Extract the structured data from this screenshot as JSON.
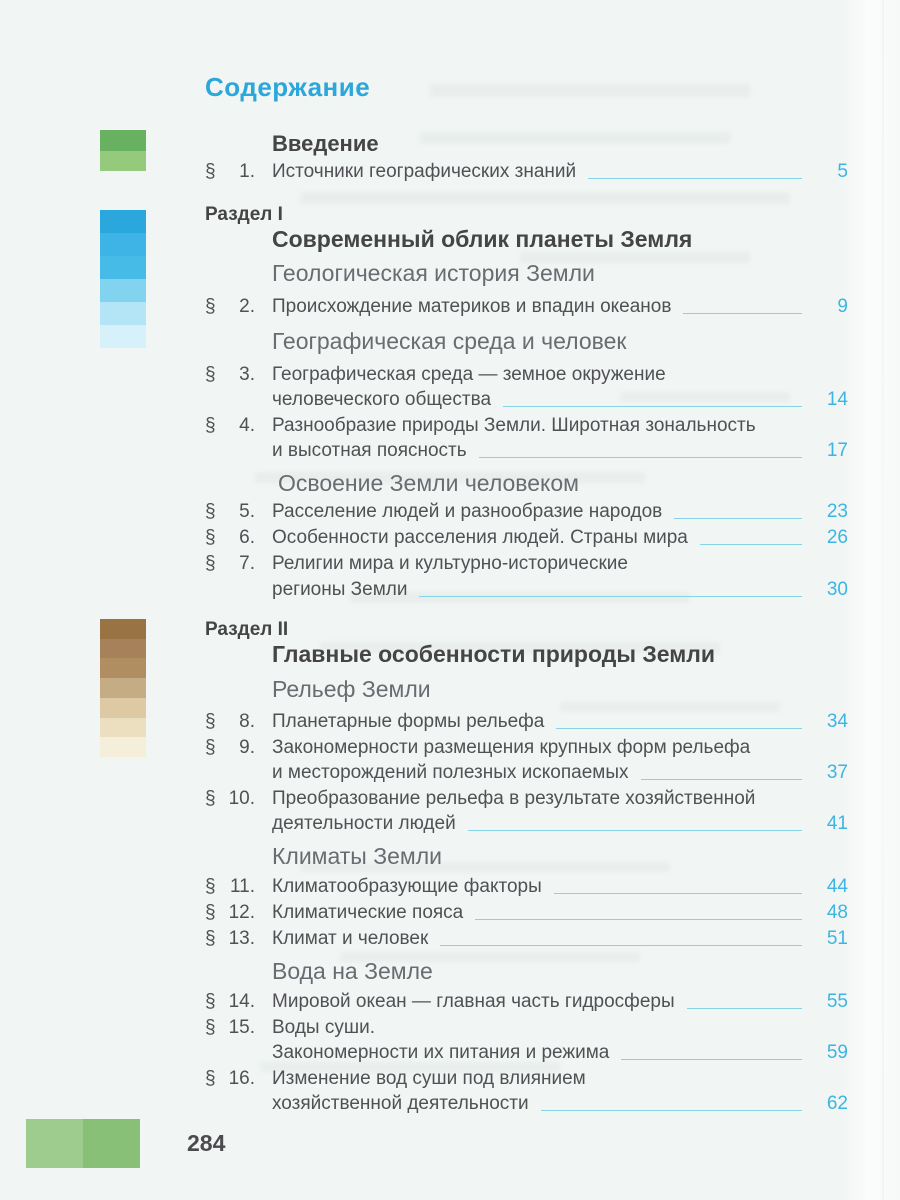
{
  "page": {
    "title": "Содержание",
    "folio": "284"
  },
  "colors": {
    "accent_cyan": "#2ca7db",
    "page_ref_cyan": "#3cb5e2",
    "leader_cyan": "#85d2e9",
    "heading_dark": "#454547",
    "body_text": "#515155",
    "group_gray": "#6b6b72",
    "background": "#f1f5f3"
  },
  "swatches": {
    "intro": [
      "#68b160",
      "#95c97c"
    ],
    "part1": [
      "#2aa7dc",
      "#3db4e5",
      "#46bbe8",
      "#82d3f0",
      "#b4e5f6",
      "#d7f1fa"
    ],
    "part2": [
      "#9a7345",
      "#a6815a",
      "#b08e61",
      "#c6ac85",
      "#ddc9a3",
      "#ecdfc0",
      "#f5eeda"
    ],
    "footer": [
      "#9ecb8e",
      "#89c077"
    ]
  },
  "toc": {
    "section_mark": "§",
    "intro_title": "Введение",
    "part1": {
      "label": "Раздел I",
      "title": "Современный облик планеты Земля"
    },
    "part2": {
      "label": "Раздел II",
      "title": "Главные особенности природы Земли"
    },
    "groups": [
      "Геологическая история Земли",
      "Географическая среда и человек",
      "Освоение Земли человеком",
      "Рельеф Земли",
      "Климаты Земли",
      "Вода на Земле"
    ],
    "entries": [
      {
        "num": "1.",
        "line1": "Источники географических знаний",
        "page": "5"
      },
      {
        "num": "2.",
        "line1": "Происхождение материков и впадин океанов",
        "page": "9"
      },
      {
        "num": "3.",
        "line1": "Географическая среда — земное окружение",
        "line2": "человеческого общества",
        "page": "14"
      },
      {
        "num": "4.",
        "line1": "Разнообразие природы Земли. Широтная зональность",
        "line2": "и высотная поясность",
        "page": "17"
      },
      {
        "num": "5.",
        "line1": "Расселение людей и разнообразие народов",
        "page": "23"
      },
      {
        "num": "6.",
        "line1": "Особенности расселения людей. Страны мира",
        "page": "26"
      },
      {
        "num": "7.",
        "line1": "Религии мира и культурно-исторические",
        "line2": "регионы Земли",
        "page": "30"
      },
      {
        "num": "8.",
        "line1": "Планетарные формы рельефа",
        "page": "34"
      },
      {
        "num": "9.",
        "line1": "Закономерности размещения крупных форм рельефа",
        "line2": "и месторождений полезных ископаемых",
        "page": "37"
      },
      {
        "num": "10.",
        "line1": "Преобразование рельефа в результате хозяйственной",
        "line2": "деятельности людей",
        "page": "41"
      },
      {
        "num": "11.",
        "line1": "Климатообразующие факторы",
        "page": "44"
      },
      {
        "num": "12.",
        "line1": "Климатические пояса",
        "page": "48"
      },
      {
        "num": "13.",
        "line1": "Климат и человек",
        "page": "51"
      },
      {
        "num": "14.",
        "line1": "Мировой океан — главная часть гидросферы",
        "page": "55"
      },
      {
        "num": "15.",
        "line1": "Воды суши.",
        "line2": "Закономерности их питания и режима",
        "page": "59"
      },
      {
        "num": "16.",
        "line1": "Изменение вод суши под влиянием",
        "line2": "хозяйственной деятельности",
        "page": "62"
      }
    ]
  }
}
